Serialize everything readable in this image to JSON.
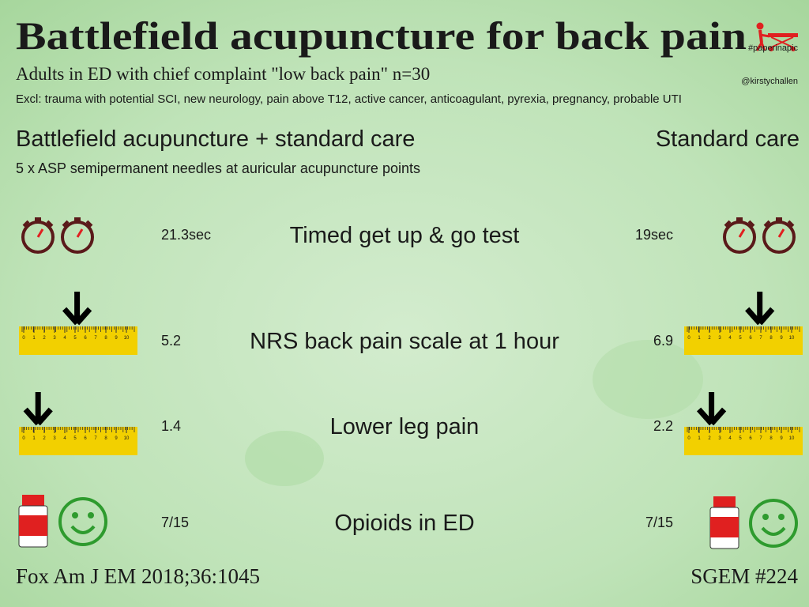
{
  "header": {
    "title": "Battlefield acupuncture for back pain",
    "subtitle": "Adults in ED with chief complaint \"low back pain\" n=30",
    "hashtag": "#paperinapic",
    "handle": "@kirstychallen",
    "exclusions": "Excl: trauma with potential SCI, new neurology, pain above T12, active cancer, anticoagulant, pyrexia, pregnancy, probable UTI"
  },
  "groups": {
    "left": "Battlefield acupuncture + standard care",
    "right": "Standard care",
    "intervention": "5 x ASP semipermanent needles at auricular acupuncture points"
  },
  "ruler_scale": [
    0,
    1,
    2,
    3,
    4,
    5,
    6,
    7,
    8,
    9,
    10
  ],
  "rows": [
    {
      "label": "Timed get up & go test",
      "left": "21.3sec",
      "right": "19sec"
    },
    {
      "label": "NRS back pain scale at 1 hour",
      "left": 5.2,
      "right": 6.9
    },
    {
      "label": "Lower leg pain",
      "left": 1.4,
      "right": 2.2
    },
    {
      "label": "Opioids in ED",
      "left": "7/15",
      "right": "7/15"
    }
  ],
  "footer": {
    "left": "Fox Am J EM 2018;36:1045",
    "right": "SGEM #224"
  }
}
